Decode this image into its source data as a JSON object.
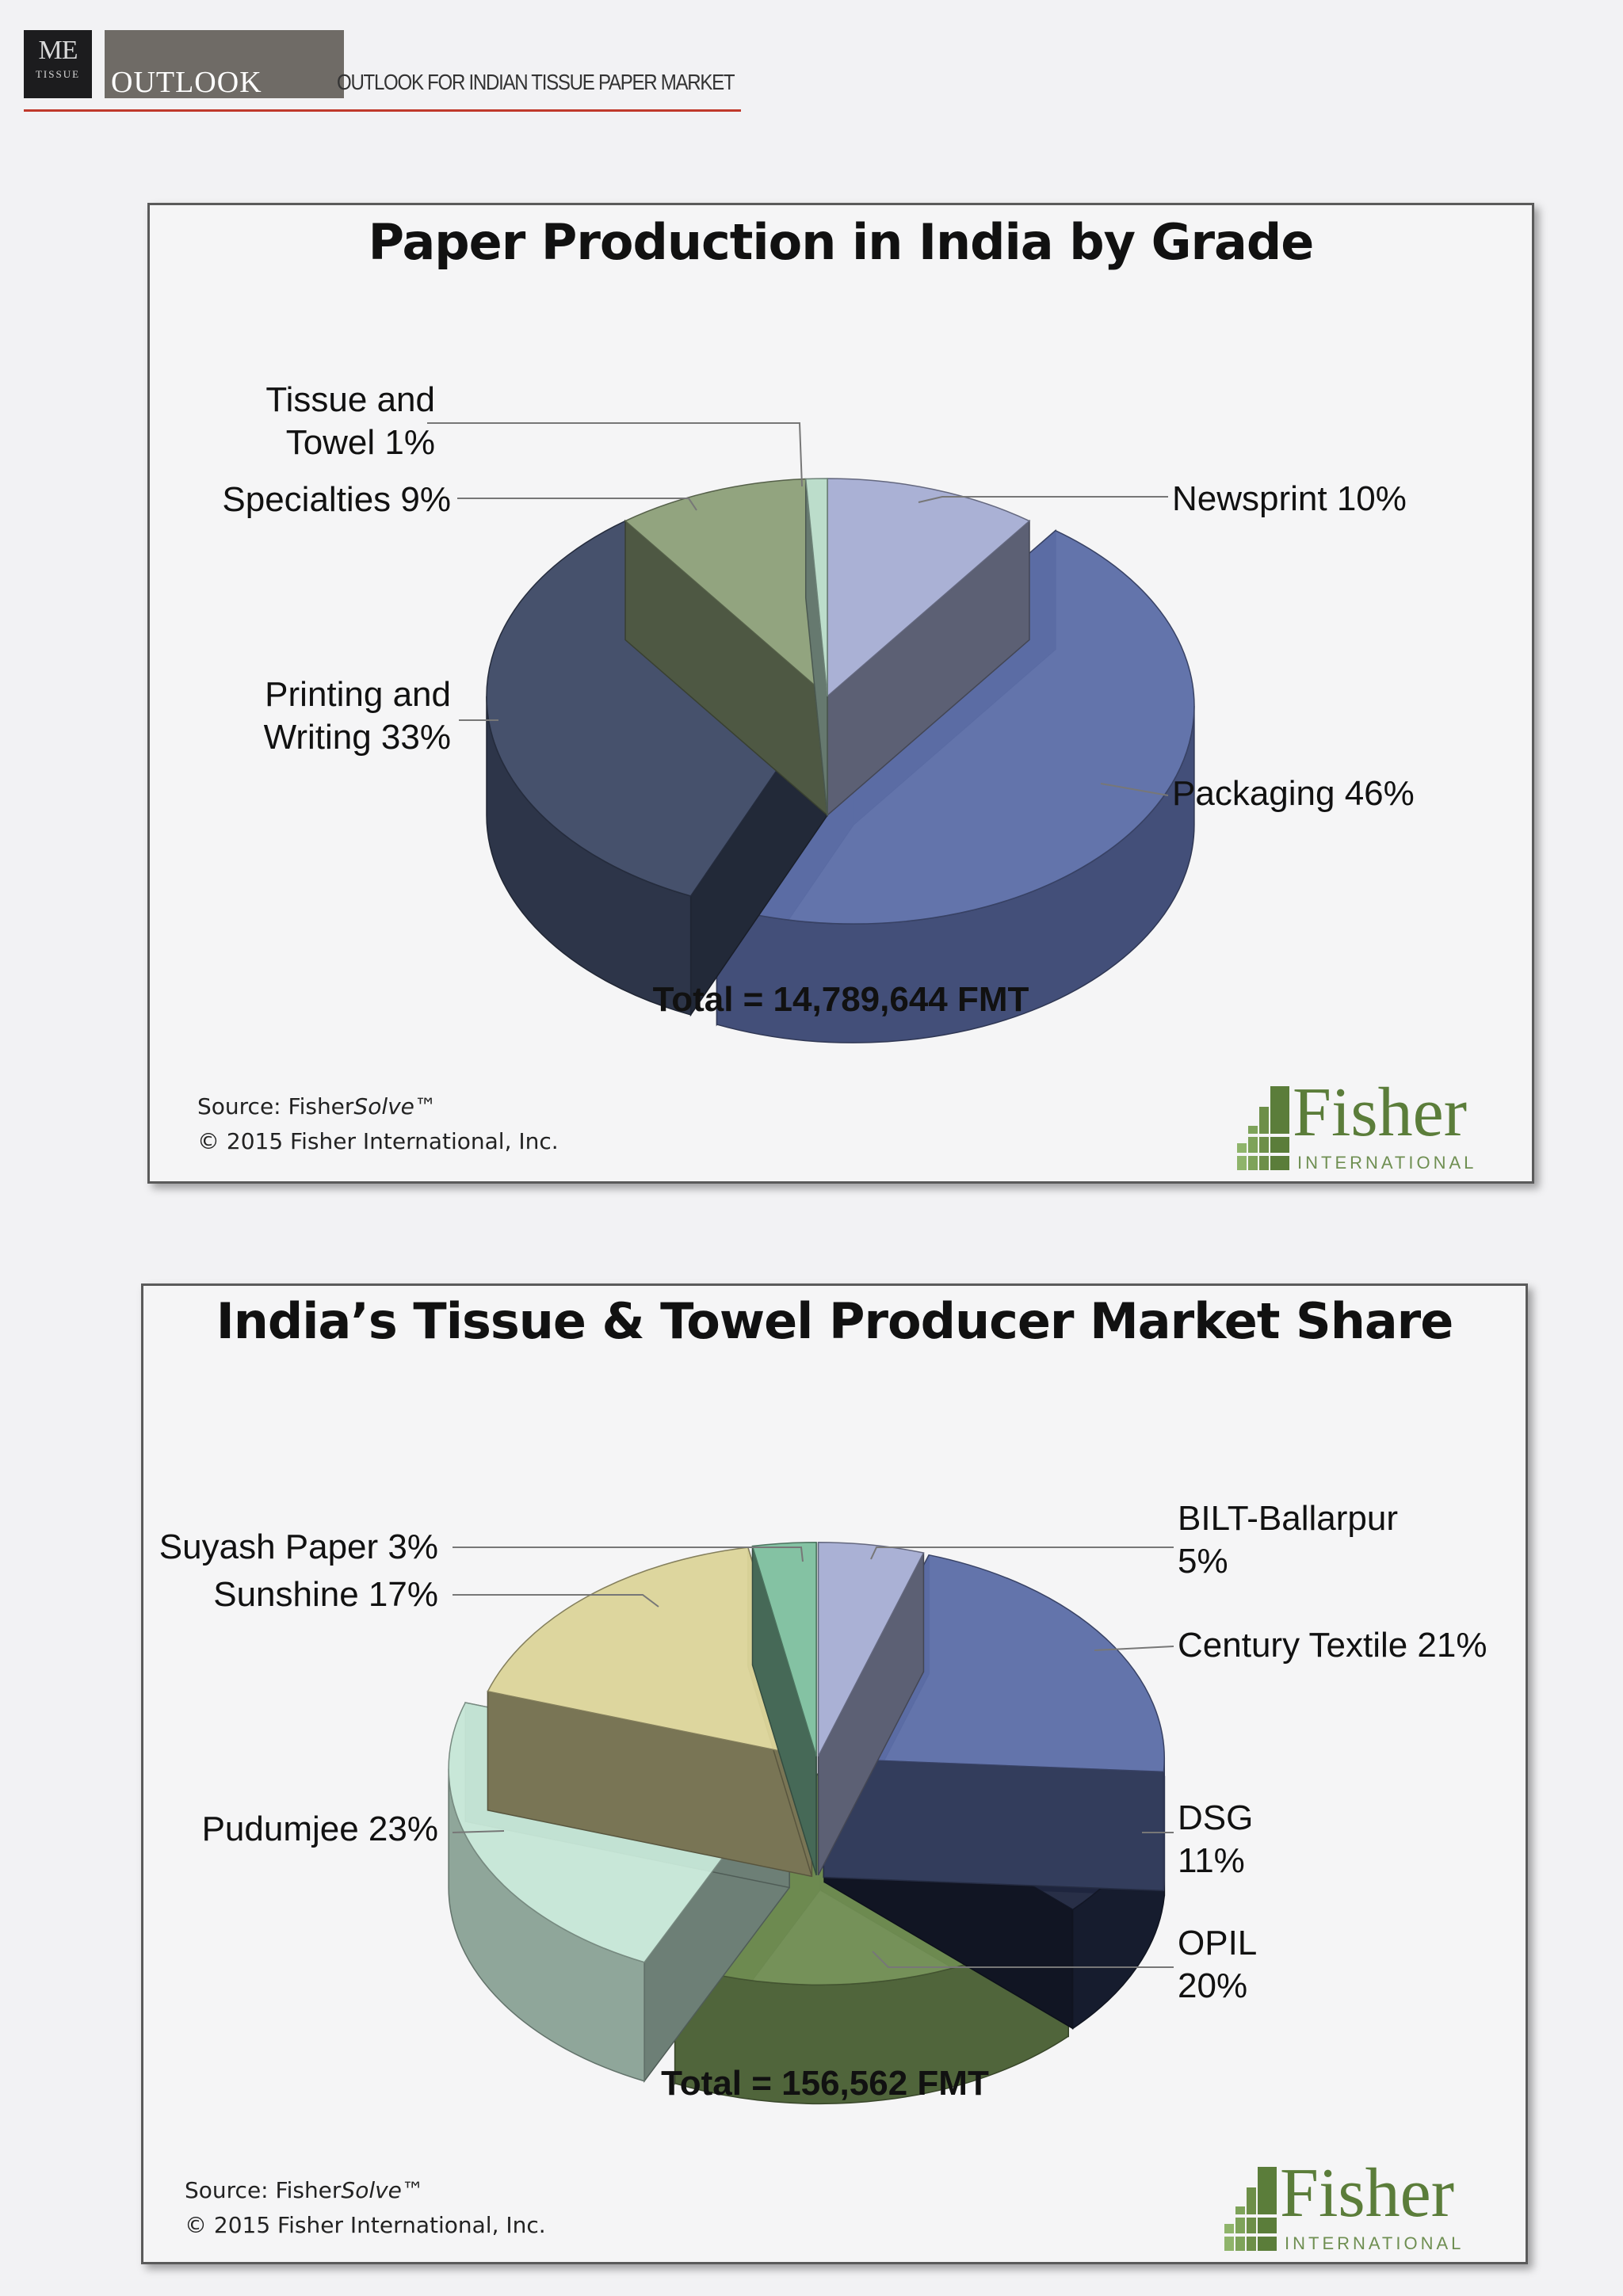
{
  "masthead": {
    "logo_main": "ME",
    "logo_sub": "TISSUE",
    "section": "OUTLOOK",
    "running_head": "OUTLOOK FOR INDIAN TISSUE PAPER MARKET",
    "accent_color": "#c0392b"
  },
  "chart_data": [
    {
      "type": "pie",
      "title": "Paper Production in India by Grade",
      "total_label": "Total = 14,789,644 FMT",
      "slices": [
        {
          "name": "Newsprint",
          "value": 10,
          "label": "Newsprint 10%",
          "color": "#a7aed3"
        },
        {
          "name": "Packaging",
          "value": 46,
          "label": "Packaging 46%",
          "color": "#5d6ea8"
        },
        {
          "name": "Printing and Writing",
          "value": 33,
          "label": "Printing and Writing 33%",
          "label_lines": [
            "Printing and",
            "Writing 33%"
          ],
          "color": "#3e4a66"
        },
        {
          "name": "Specialties",
          "value": 9,
          "label": "Specialties 9%",
          "color": "#8ea07a"
        },
        {
          "name": "Tissue and Towel",
          "value": 1,
          "label": "Tissue and Towel 1%",
          "label_lines": [
            "Tissue and",
            "Towel 1%"
          ],
          "color": "#b9dcc9"
        }
      ],
      "source_prefix": "Source: Fisher",
      "source_italic": "Solve",
      "source_tm": "™",
      "copyright": "© 2015 Fisher International, Inc."
    },
    {
      "type": "pie",
      "title": "India’s Tissue & Towel Producer Market Share",
      "total_label": "Total = 156,562 FMT",
      "slices": [
        {
          "name": "BILT-Ballarpur",
          "value": 5,
          "label": "BILT-Ballarpur 5%",
          "label_lines": [
            "BILT-Ballarpur",
            "5%"
          ],
          "color": "#a7aed3"
        },
        {
          "name": "Century Textile",
          "value": 21,
          "label": "Century Textile 21%",
          "color": "#5d6ea8"
        },
        {
          "name": "DSG",
          "value": 11,
          "label": "DSG 11%",
          "label_lines": [
            "DSG",
            "11%"
          ],
          "color": "#1f2740"
        },
        {
          "name": "OPIL",
          "value": 20,
          "label": "OPIL 20%",
          "label_lines": [
            "OPIL",
            "20%"
          ],
          "color": "#6f8c52"
        },
        {
          "name": "Pudumjee",
          "value": 23,
          "label": "Pudumjee 23%",
          "color": "#c6e6d6"
        },
        {
          "name": "Sunshine",
          "value": 17,
          "label": "Sunshine 17%",
          "color": "#dcd49a"
        },
        {
          "name": "Suyash Paper",
          "value": 3,
          "label": "Suyash Paper 3%",
          "color": "#7fbf9f"
        }
      ],
      "source_prefix": "Source: Fisher",
      "source_italic": "Solve",
      "source_tm": "™",
      "copyright": "© 2015 Fisher International, Inc."
    }
  ],
  "branding": {
    "fisher_word": "Fisher",
    "fisher_sub": "INTERNATIONAL",
    "fisher_color": "#5b7d3a"
  }
}
